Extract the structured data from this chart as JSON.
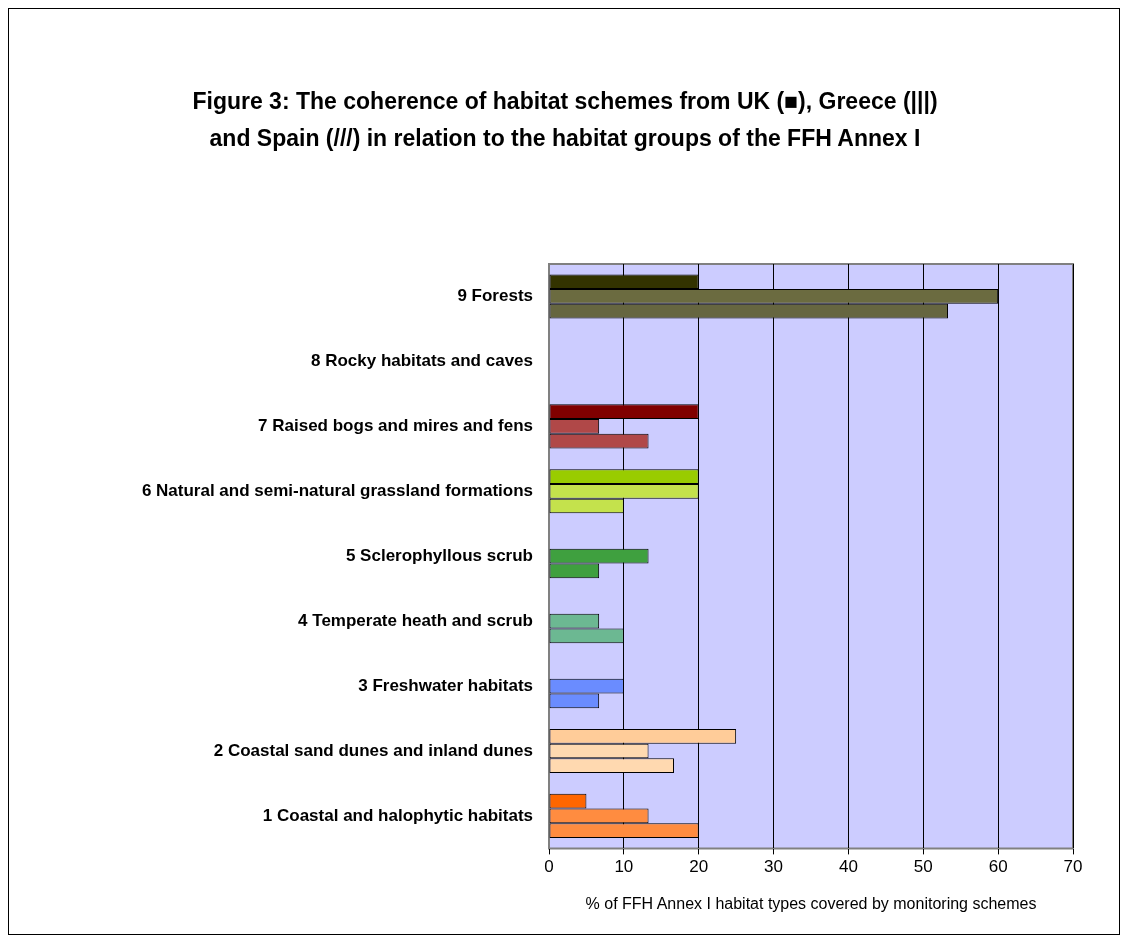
{
  "chart_data": {
    "type": "bar",
    "orientation": "horizontal",
    "title": "Figure 3: The coherence of habitat schemes from UK (■), Greece (|||) and Spain (///) in relation to the habitat groups of the FFH Annex I",
    "xlabel": "% of FFH Annex I habitat types covered by monitoring schemes",
    "categories": [
      "9 Forests",
      "8 Rocky habitats and caves",
      "7 Raised bogs and mires and fens",
      "6 Natural and semi-natural grassland formations",
      "5 Sclerophyllous scrub",
      "4 Temperate heath and scrub",
      "3 Freshwater habitats",
      "2 Coastal sand dunes and inland dunes",
      "1 Coastal and halophytic habitats"
    ],
    "series": [
      {
        "values": [
          20,
          null,
          20,
          20,
          null,
          null,
          null,
          25,
          5
        ],
        "colors": [
          "#333300",
          "#333300",
          "#800000",
          "#99cc00",
          "#339933",
          "#66b38c",
          "#6688ff",
          "#ffcc99",
          "#ff6600"
        ]
      },
      {
        "values": [
          60,
          null,
          6.7,
          20,
          13.3,
          6.7,
          10,
          13.3,
          13.3
        ],
        "colors": [
          "#6b6b40",
          "#6b6b40",
          "#b04848",
          "#c4e24c",
          "#3fa03f",
          "#6cb892",
          "#6a8cff",
          "#ffd9b0",
          "#ff8c40"
        ]
      },
      {
        "values": [
          53.3,
          null,
          13.3,
          10,
          6.7,
          10,
          6.7,
          16.7,
          20
        ],
        "colors": [
          "#666640",
          "#666640",
          "#b04848",
          "#c4e24c",
          "#3fa03f",
          "#6cb892",
          "#6a8cff",
          "#ffd9b0",
          "#ff8c40"
        ]
      }
    ],
    "xlim": [
      0,
      70
    ],
    "xticks": [
      0,
      10,
      20,
      30,
      40,
      50,
      60,
      70
    ],
    "grid": "x",
    "legend": false
  }
}
